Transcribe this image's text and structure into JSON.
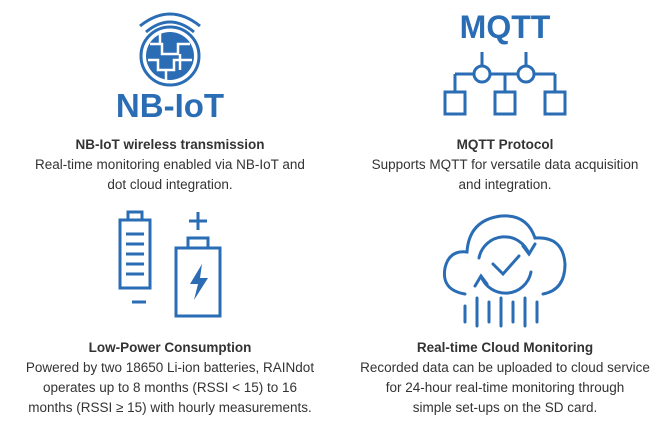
{
  "accent_color": "#2a6db5",
  "features": [
    {
      "icon": "nb-iot-globe-icon",
      "logo_text": "NB-IoT",
      "title": "NB-IoT wireless transmission",
      "lines": [
        "Real-time monitoring enabled via NB-IoT and",
        "dot cloud integration."
      ]
    },
    {
      "icon": "mqtt-network-icon",
      "logo_text": "MQTT",
      "title": "MQTT Protocol",
      "lines": [
        "Supports MQTT for versatile data acquisition",
        "and integration."
      ]
    },
    {
      "icon": "battery-icon",
      "title": "Low-Power Consumption",
      "lines": [
        "Powered by two 18650 Li-ion batteries, RAINdot",
        "operates up to 8 months (RSSI < 15) to 16",
        "months (RSSI ≥ 15) with hourly measurements."
      ]
    },
    {
      "icon": "cloud-sync-icon",
      "title": "Real-time Cloud Monitoring",
      "lines": [
        "Recorded data can be uploaded to cloud service",
        "for 24-hour real-time monitoring through",
        "simple set-ups on the SD card."
      ]
    }
  ]
}
